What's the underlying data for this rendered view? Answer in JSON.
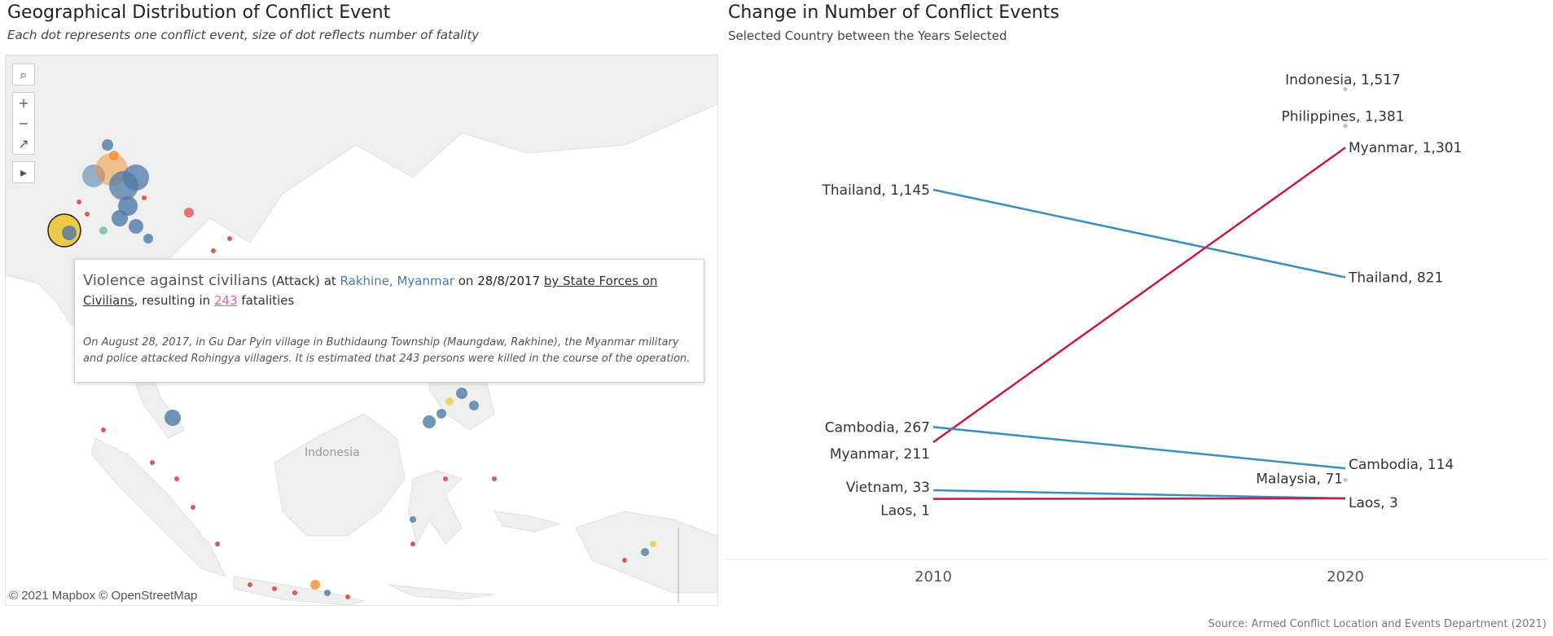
{
  "map": {
    "title": "Geographical Distribution of Conflict Event",
    "subtitle": "Each dot represents one conflict event, size of dot reflects number of fatality",
    "attribution": "© 2021 Mapbox © OpenStreetMap",
    "country_label": "Indonesia",
    "controls": {
      "search": "⌕",
      "zoom_in": "+",
      "zoom_out": "−",
      "pin": "↗",
      "expand": "▸"
    },
    "colors": {
      "land": "#efefef",
      "water": "#ffffff",
      "blue_dot": "#4e79a7",
      "red_dot": "#e15759",
      "orange_dot": "#f28e2b",
      "yellow_dot": "#edc948"
    },
    "tooltip": {
      "event_type": "Violence against civilians",
      "sub_type": "(Attack)",
      "at": "at",
      "location": "Rakhine, Myanmar",
      "on": "on",
      "date": "28/8/2017",
      "actor": "by State Forces on Civilians",
      "resulting": ", resulting in",
      "fatalities": "243",
      "fatalities_suffix": "fatalities",
      "note": "On August 28, 2017, in Gu Dar Pyin village in Buthidaung Township (Maungdaw, Rakhine), the Myanmar military and police attacked Rohingya villagers. It is estimated that 243 persons were killed in the course of the operation."
    }
  },
  "chart_data": {
    "type": "line",
    "title": "Change in Number of Conflict Events",
    "subtitle": "Selected Country between the Years Selected",
    "x": [
      "2010",
      "2020"
    ],
    "ylim": [
      0,
      1600
    ],
    "grid": false,
    "series": [
      {
        "name": "Thailand",
        "values": [
          1145,
          821
        ],
        "color": "#3a8fc2",
        "labels": [
          "Thailand, 1,145",
          "Thailand, 821"
        ]
      },
      {
        "name": "Myanmar",
        "values": [
          211,
          1301
        ],
        "color": "#c8174a",
        "labels": [
          "Myanmar, 211",
          "Myanmar, 1,301"
        ]
      },
      {
        "name": "Cambodia",
        "values": [
          267,
          114
        ],
        "color": "#3a8fc2",
        "labels": [
          "Cambodia, 267",
          "Cambodia, 114"
        ]
      },
      {
        "name": "Vietnam",
        "values": [
          33,
          3
        ],
        "color": "#3a8fc2",
        "labels": [
          "Vietnam, 33",
          ""
        ]
      },
      {
        "name": "Laos",
        "values": [
          1,
          3
        ],
        "color": "#c8174a",
        "labels": [
          "Laos, 1",
          "Laos, 3"
        ]
      },
      {
        "name": "Indonesia",
        "values": [
          null,
          1517
        ],
        "color": "#d7b8a8",
        "labels": [
          "",
          "Indonesia, 1,517"
        ]
      },
      {
        "name": "Philippines",
        "values": [
          null,
          1381
        ],
        "color": "#d7b8a8",
        "labels": [
          "",
          "Philippines, 1,381"
        ]
      },
      {
        "name": "Malaysia",
        "values": [
          null,
          71
        ],
        "color": "#d7b8a8",
        "labels": [
          "",
          "Malaysia, 71"
        ]
      }
    ]
  },
  "source": "Source: Armed Conflict Location and Events Department (2021)"
}
